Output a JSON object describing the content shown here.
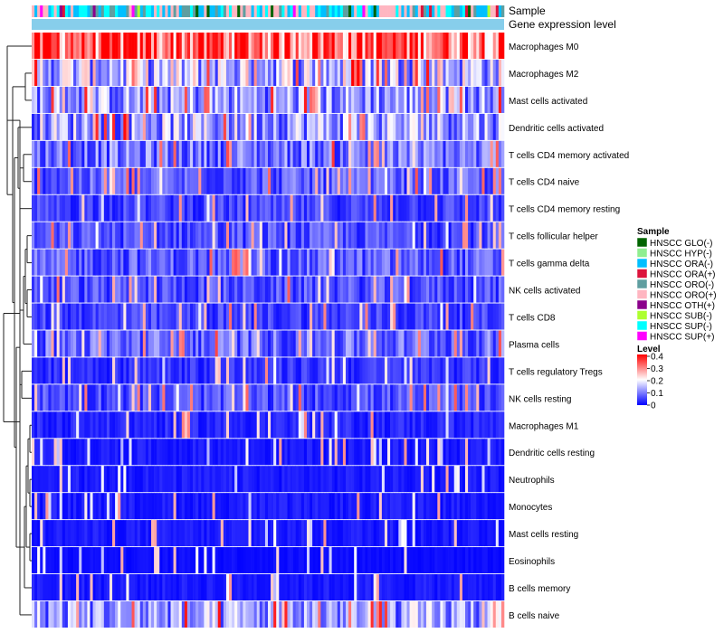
{
  "chart_data": {
    "type": "heatmap",
    "annotation_rows": [
      "Sample",
      "Gene expression level"
    ],
    "rows": [
      "Macrophages M0",
      "Macrophages M2",
      "Mast cells activated",
      "Dendritic cells activated",
      "T cells CD4 memory activated",
      "T cells CD4 naive",
      "T cells CD4 memory resting",
      "T cells follicular helper",
      "T cells gamma delta",
      "NK cells activated",
      "T cells CD8",
      "Plasma cells",
      "T cells regulatory  Tregs",
      "NK cells resting",
      "Macrophages M1",
      "Dendritic cells resting",
      "Neutrophils",
      "Monocytes",
      "Mast cells resting",
      "Eosinophils",
      "B cells memory",
      "B cells naive"
    ],
    "row_mean_level": [
      0.32,
      0.15,
      0.12,
      0.13,
      0.09,
      0.07,
      0.05,
      0.06,
      0.07,
      0.06,
      0.05,
      0.08,
      0.04,
      0.06,
      0.03,
      0.02,
      0.02,
      0.02,
      0.02,
      0.01,
      0.02,
      0.12
    ],
    "n_samples": 170,
    "gene_expression_level_color": "#87ceeb",
    "sample_legend": {
      "title": "Sample",
      "items": [
        {
          "label": "HNSCC GLO(-)",
          "color": "#006400"
        },
        {
          "label": "HNSCC HYP(-)",
          "color": "#90ee90"
        },
        {
          "label": "HNSCC ORA(-)",
          "color": "#00bfff"
        },
        {
          "label": "HNSCC ORA(+)",
          "color": "#dc143c"
        },
        {
          "label": "HNSCC ORO(-)",
          "color": "#5f9ea0"
        },
        {
          "label": "HNSCC ORO(+)",
          "color": "#ffb6c1"
        },
        {
          "label": "HNSCC OTH(+)",
          "color": "#8b008b"
        },
        {
          "label": "HNSCC SUB(-)",
          "color": "#adff2f"
        },
        {
          "label": "HNSCC SUP(-)",
          "color": "#00ffff"
        },
        {
          "label": "HNSCC SUP(+)",
          "color": "#ff00ff"
        }
      ]
    },
    "level_legend": {
      "title": "Level",
      "ticks": [
        "0.4",
        "0.3",
        "0.2",
        "0.1",
        "0"
      ],
      "tick_values": [
        0.4,
        0.3,
        0.2,
        0.1,
        0
      ],
      "range": [
        0,
        0.4
      ],
      "colors": {
        "low": "#0000ff",
        "mid": "#ffffff",
        "high": "#ff0000"
      }
    }
  }
}
